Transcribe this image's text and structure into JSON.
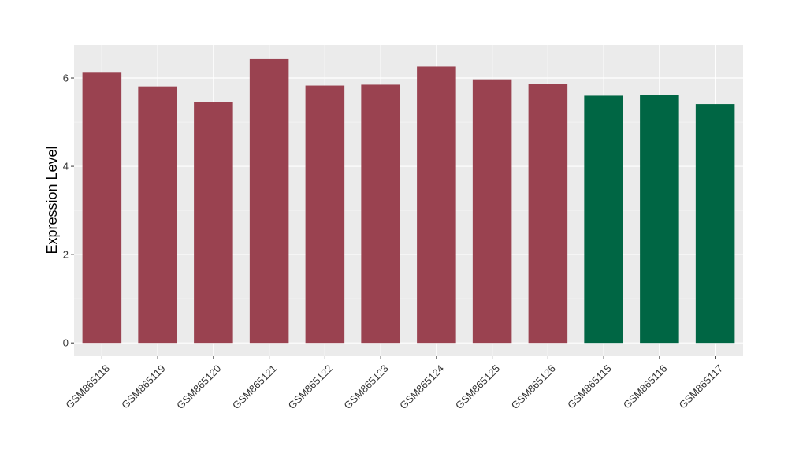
{
  "chart_data": {
    "type": "bar",
    "title": "",
    "xlabel": "",
    "ylabel": "Expression Level",
    "ylim": [
      -0.3,
      6.75
    ],
    "yticks": [
      0,
      2,
      4,
      6
    ],
    "grid": true,
    "legend": "none",
    "categories": [
      "GSM865118",
      "GSM865119",
      "GSM865120",
      "GSM865121",
      "GSM865122",
      "GSM865123",
      "GSM865124",
      "GSM865125",
      "GSM865126",
      "GSM865115",
      "GSM865116",
      "GSM865117"
    ],
    "values": [
      6.12,
      5.81,
      5.46,
      6.43,
      5.83,
      5.85,
      6.26,
      5.97,
      5.86,
      5.6,
      5.61,
      5.41
    ],
    "bar_colors": [
      "#9a4250",
      "#9a4250",
      "#9a4250",
      "#9a4250",
      "#9a4250",
      "#9a4250",
      "#9a4250",
      "#9a4250",
      "#9a4250",
      "#006644",
      "#006644",
      "#006644"
    ]
  },
  "colors": {
    "panel_background": "#ebebeb",
    "grid_major": "#ffffff",
    "grid_minor": "#f5f5f5"
  }
}
